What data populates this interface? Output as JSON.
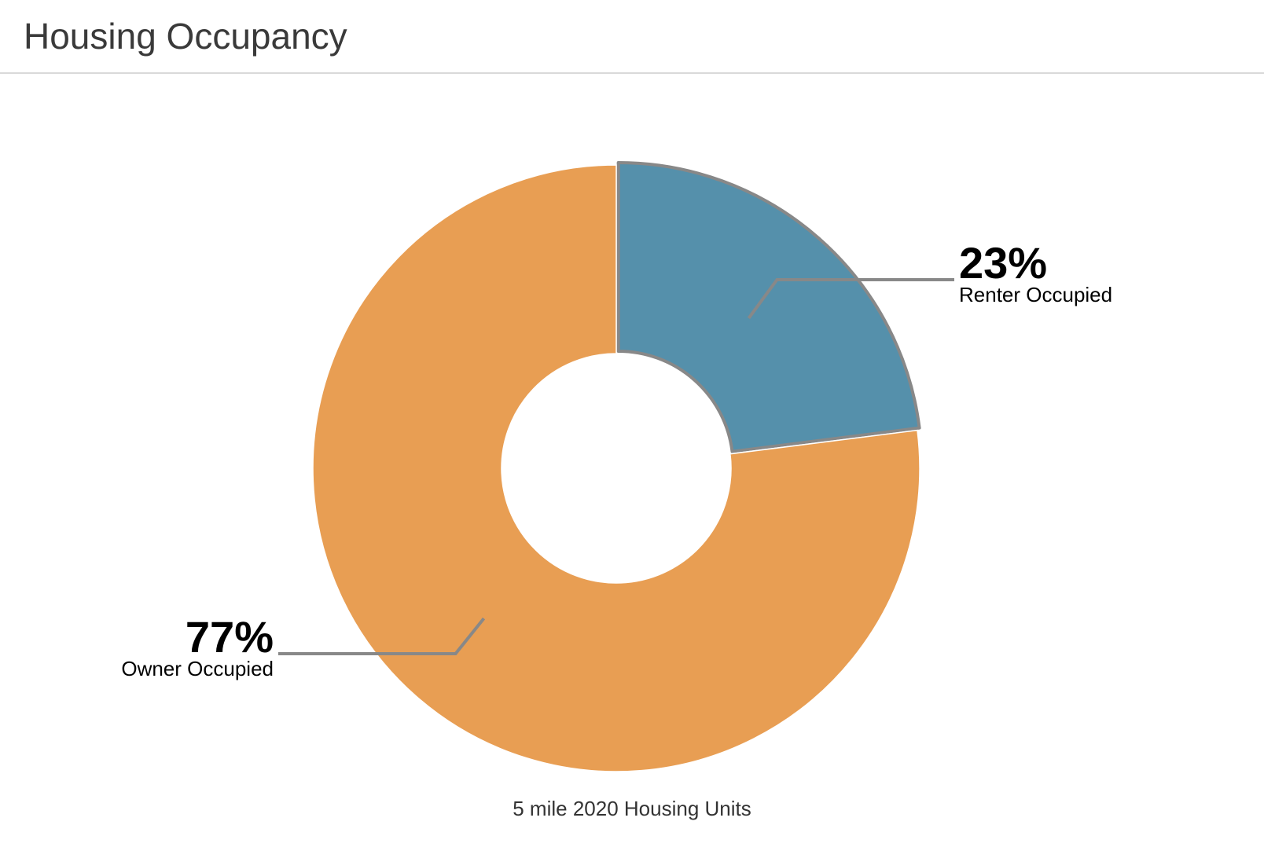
{
  "page": {
    "title": "Housing Occupancy"
  },
  "chart_data": {
    "type": "pie",
    "variant": "donut",
    "caption": "5 mile 2020 Housing Units",
    "categories": [
      "Renter Occupied",
      "Owner Occupied"
    ],
    "values": [
      23,
      77
    ],
    "value_labels": [
      "23%",
      "77%"
    ],
    "colors": [
      "#5590ab",
      "#e89e53"
    ],
    "highlighted": "Renter Occupied",
    "label_placement": "outside with leader lines",
    "legend": "none"
  },
  "colors": {
    "title_text": "#3a3a3a",
    "divider": "#d9d9d9",
    "leader_line": "#888888",
    "highlight_stroke": "#888888",
    "label_text": "#000000"
  }
}
